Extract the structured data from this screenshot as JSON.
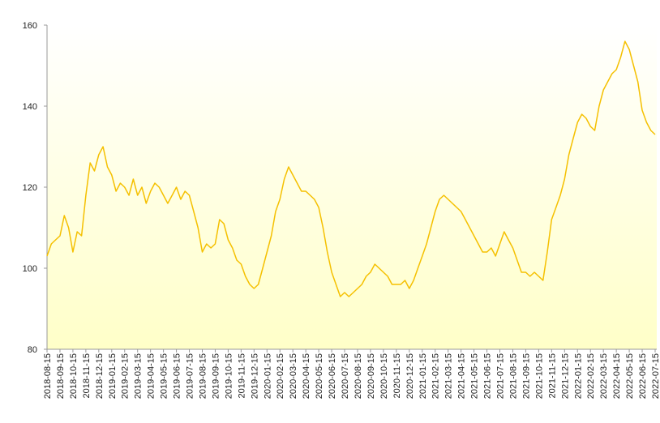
{
  "chart_data": {
    "type": "line",
    "categories": [
      "2018-08-15",
      null,
      null,
      "2018-09-15",
      null,
      null,
      "2018-10-15",
      null,
      null,
      "2018-11-15",
      null,
      null,
      "2018-12-15",
      null,
      null,
      "2019-01-15",
      null,
      null,
      "2019-02-15",
      null,
      null,
      "2019-03-15",
      null,
      null,
      "2019-04-15",
      null,
      null,
      "2019-05-15",
      null,
      null,
      "2019-06-15",
      null,
      null,
      "2019-07-15",
      null,
      null,
      "2019-08-15",
      null,
      null,
      "2019-09-15",
      null,
      null,
      "2019-10-15",
      null,
      null,
      "2019-11-15",
      null,
      null,
      "2019-12-15",
      null,
      null,
      "2020-01-15",
      null,
      null,
      "2020-02-15",
      null,
      null,
      "2020-03-15",
      null,
      null,
      "2020-04-15",
      null,
      null,
      "2020-05-15",
      null,
      null,
      "2020-06-15",
      null,
      null,
      "2020-07-15",
      null,
      null,
      "2020-08-15",
      null,
      null,
      "2020-09-15",
      null,
      null,
      "2020-10-15",
      null,
      null,
      "2020-11-15",
      null,
      null,
      "2020-12-15",
      null,
      null,
      "2021-01-15",
      null,
      null,
      "2021-02-15",
      null,
      null,
      "2021-03-15",
      null,
      null,
      "2021-04-15",
      null,
      null,
      "2021-05-15",
      null,
      null,
      "2021-06-15",
      null,
      null,
      "2021-07-15",
      null,
      null,
      "2021-08-15",
      null,
      null,
      "2021-09-15",
      null,
      null,
      "2021-10-15",
      null,
      null,
      "2021-11-15",
      null,
      null,
      "2021-12-15",
      null,
      null,
      "2022-01-15",
      null,
      null,
      "2022-02-15",
      null,
      null,
      "2022-03-15",
      null,
      null,
      "2022-04-15",
      null,
      null,
      "2022-05-15",
      null,
      null,
      "2022-06-15",
      null,
      null,
      "2022-07-15"
    ],
    "values": [
      103,
      106,
      107,
      108,
      113,
      110,
      104,
      109,
      108,
      118,
      126,
      124,
      128,
      130,
      125,
      123,
      119,
      121,
      120,
      118,
      122,
      118,
      120,
      116,
      119,
      121,
      120,
      118,
      116,
      118,
      120,
      117,
      119,
      118,
      114,
      110,
      104,
      106,
      105,
      106,
      112,
      111,
      107,
      105,
      102,
      101,
      98,
      96,
      95,
      96,
      100,
      104,
      108,
      114,
      117,
      122,
      125,
      123,
      121,
      119,
      119,
      118,
      117,
      115,
      110,
      104,
      99,
      96,
      93,
      94,
      93,
      94,
      95,
      96,
      98,
      99,
      101,
      100,
      99,
      98,
      96,
      96,
      96,
      97,
      95,
      97,
      100,
      103,
      106,
      110,
      114,
      117,
      118,
      117,
      116,
      115,
      114,
      112,
      110,
      108,
      106,
      104,
      104,
      105,
      103,
      106,
      109,
      107,
      105,
      102,
      99,
      99,
      98,
      99,
      98,
      97,
      104,
      112,
      115,
      118,
      122,
      128,
      132,
      136,
      138,
      137,
      135,
      134,
      140,
      144,
      146,
      148,
      149,
      152,
      156,
      154,
      150,
      146,
      139,
      136,
      134,
      133
    ],
    "color": "#f5c000",
    "ylim": [
      80,
      160
    ],
    "yticks": [
      80,
      100,
      120,
      140,
      160
    ]
  }
}
